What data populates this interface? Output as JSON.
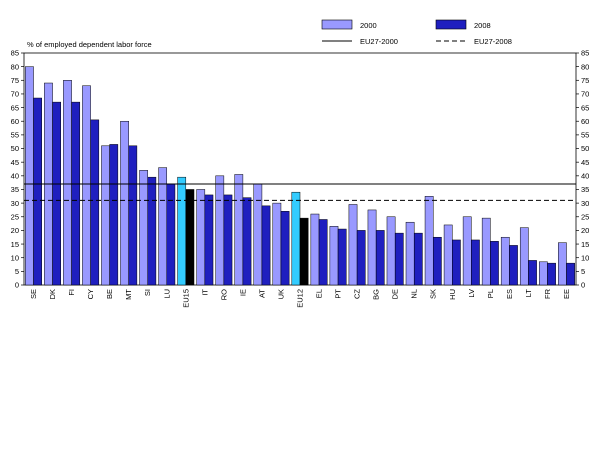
{
  "chart_data": {
    "type": "bar",
    "ylabel": "% of employed dependent labor force",
    "ylim": [
      0,
      85
    ],
    "ytick_step": 5,
    "grid": false,
    "legend_position": "top-right",
    "categories": [
      "SE",
      "DK",
      "FI",
      "CY",
      "BE",
      "MT",
      "SI",
      "LU",
      "EU15",
      "IT",
      "RO",
      "IE",
      "AT",
      "UK",
      "EU12",
      "EL",
      "PT",
      "CZ",
      "BG",
      "DE",
      "NL",
      "SK",
      "HU",
      "LV",
      "PL",
      "ES",
      "LT",
      "FR",
      "EE"
    ],
    "series": [
      {
        "name": "2000",
        "color": "#9999ff",
        "values": [
          80,
          74,
          75,
          73,
          51,
          60,
          42,
          43,
          39.5,
          35,
          40,
          40.5,
          37,
          30,
          34,
          26,
          21.5,
          29.5,
          27.5,
          25,
          23,
          32.5,
          22,
          25,
          24.5,
          17.5,
          21,
          8.5,
          15.5
        ]
      },
      {
        "name": "2008",
        "color": "#1f1fbf",
        "values": [
          68.5,
          67,
          67,
          60.5,
          51.5,
          51,
          39.5,
          37,
          35,
          33,
          33,
          32,
          29,
          27,
          24.5,
          24,
          20.5,
          20,
          20,
          19,
          19,
          17.5,
          16.5,
          16.5,
          16,
          14.5,
          9,
          8,
          8
        ]
      }
    ],
    "highlight": {
      "EU15": {
        "2000": "#33ccff",
        "2008": "#000000"
      },
      "EU12": {
        "2000": "#33ccff",
        "2008": "#000000"
      }
    },
    "reference_lines": [
      {
        "name": "EU27-2000",
        "value": 37,
        "style": "solid"
      },
      {
        "name": "EU27-2008",
        "value": 31,
        "style": "dashed"
      }
    ]
  }
}
